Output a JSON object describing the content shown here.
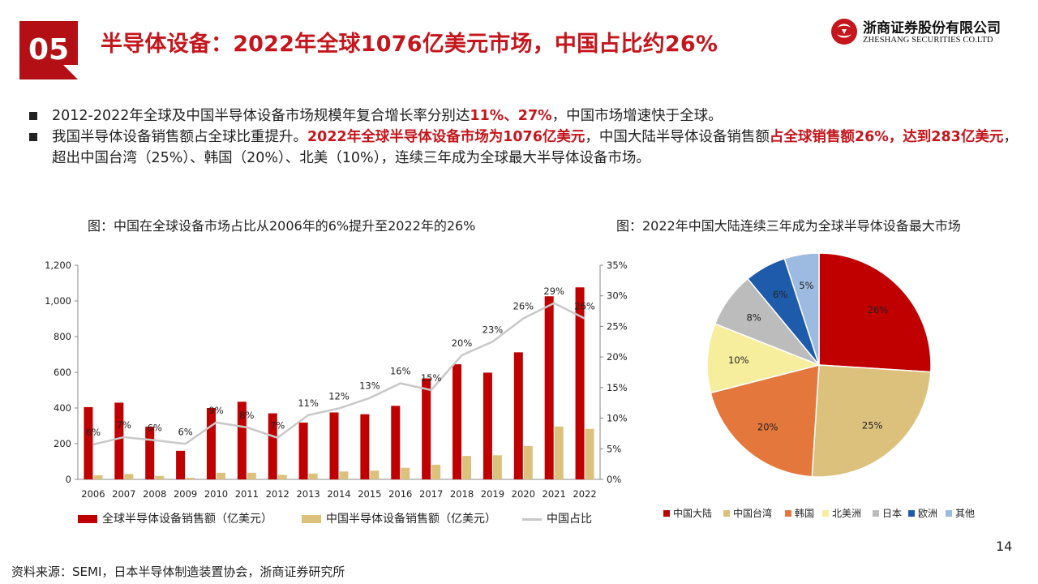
{
  "header": {
    "section_number": "05",
    "title": "半导体设备：2022年全球1076亿美元市场，中国占比约26%",
    "logo_cn": "浙商证券股份有限公司",
    "logo_en": "ZHESHANG SECURITIES CO.LTD",
    "brand_color": "#b40f14"
  },
  "bullets": [
    {
      "p1": "2012-2022年全球及中国半导体设备市场规模年复合增长率分别达",
      "h1": "11%、27%",
      "p2": "，中国市场增速快于全球。"
    },
    {
      "p1": "我国半导体设备销售额占全球比重提升。",
      "h1": "2022年全球半导体设备市场为1076亿美元",
      "p2": "，中国大陆半导体设备销售额",
      "h2": "占全球销售额26%，达到283亿美元",
      "p3": "，超出中国台湾（25%）、韩国（20%）、北美（10%），连续三年成为全球最大半导体设备市场。"
    }
  ],
  "chart_left_caption": "图：中国在全球设备市场占比从2006年的6%提升至2022年的26%",
  "chart_right_caption": "图：2022年中国大陆连续三年成为全球半导体设备最大市场",
  "chart_data": [
    {
      "type": "bar",
      "categories": [
        "2006",
        "2007",
        "2008",
        "2009",
        "2010",
        "2011",
        "2012",
        "2013",
        "2014",
        "2015",
        "2016",
        "2017",
        "2018",
        "2019",
        "2020",
        "2021",
        "2022"
      ],
      "series": [
        {
          "name": "全球半导体设备销售额（亿美元）",
          "type": "bar",
          "axis": "left",
          "color": "#c00000",
          "values": [
            405,
            430,
            295,
            160,
            400,
            435,
            370,
            318,
            375,
            365,
            412,
            566,
            645,
            598,
            712,
            1026,
            1076
          ]
        },
        {
          "name": "中国半导体设备销售额（亿美元）",
          "type": "bar",
          "axis": "left",
          "color": "#dcc17d",
          "values": [
            23,
            30,
            19,
            9,
            37,
            37,
            25,
            33,
            44,
            49,
            65,
            82,
            131,
            135,
            187,
            296,
            283
          ]
        },
        {
          "name": "中国占比",
          "type": "line",
          "axis": "right",
          "color": "#c8c8c8",
          "values": [
            5.7,
            6.9,
            6.4,
            5.8,
            9.3,
            8.5,
            6.8,
            10.5,
            11.6,
            13.3,
            15.7,
            14.6,
            20.3,
            22.5,
            26.3,
            28.8,
            26.3
          ],
          "labels": [
            "6%",
            "7%",
            "6%",
            "6%",
            "9%",
            "8%",
            "7%",
            "11%",
            "12%",
            "13%",
            "16%",
            "15%",
            "20%",
            "23%",
            "26%",
            "29%",
            "26%"
          ]
        }
      ],
      "y_left": {
        "range": [
          0,
          1200
        ],
        "ticks": [
          "0",
          "200",
          "400",
          "600",
          "800",
          "1,000",
          "1,200"
        ]
      },
      "y_right": {
        "range": [
          0,
          35
        ],
        "ticks": [
          "0%",
          "5%",
          "10%",
          "15%",
          "20%",
          "25%",
          "30%",
          "35%"
        ]
      },
      "grid": false,
      "legend_position": "bottom"
    },
    {
      "type": "pie",
      "start": "top",
      "direction": "clockwise",
      "slices": [
        {
          "name": "中国大陆",
          "value": 26,
          "label": "26%",
          "color": "#c00000"
        },
        {
          "name": "中国台湾",
          "value": 25,
          "label": "25%",
          "color": "#dcc17d"
        },
        {
          "name": "韩国",
          "value": 20,
          "label": "20%",
          "color": "#e4773b"
        },
        {
          "name": "北美洲",
          "value": 10,
          "label": "10%",
          "color": "#f6ee9d"
        },
        {
          "name": "日本",
          "value": 8,
          "label": "8%",
          "color": "#bcbcbc"
        },
        {
          "name": "欧洲",
          "value": 6,
          "label": "6%",
          "color": "#1f5bab"
        },
        {
          "name": "其他",
          "value": 5,
          "label": "5%",
          "color": "#9dbae0"
        }
      ],
      "legend_position": "bottom"
    }
  ],
  "footnote": "资料来源：SEMI，日本半导体制造装置协会，浙商证券研究所",
  "page_number": "14"
}
